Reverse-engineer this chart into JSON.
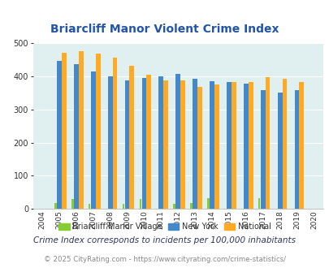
{
  "title": "Briarcliff Manor Violent Crime Index",
  "years": [
    2004,
    2005,
    2006,
    2007,
    2008,
    2009,
    2010,
    2011,
    2012,
    2013,
    2014,
    2015,
    2016,
    2017,
    2018,
    2019,
    2020
  ],
  "briarcliff": [
    0,
    17,
    30,
    15,
    0,
    15,
    30,
    0,
    15,
    17,
    32,
    0,
    0,
    32,
    0,
    0,
    0
  ],
  "new_york": [
    0,
    445,
    435,
    413,
    400,
    388,
    394,
    400,
    406,
    393,
    384,
    382,
    378,
    357,
    350,
    358,
    0
  ],
  "national": [
    0,
    470,
    474,
    468,
    455,
    432,
    405,
    388,
    387,
    368,
    376,
    381,
    381,
    397,
    393,
    381,
    0
  ],
  "briarcliff_color": "#88cc33",
  "new_york_color": "#4488cc",
  "national_color": "#ffaa22",
  "plot_bg": "#e0eff0",
  "ylim": [
    0,
    500
  ],
  "yticks": [
    0,
    100,
    200,
    300,
    400,
    500
  ],
  "legend_labels": [
    "Briarcliff Manor Village",
    "New York",
    "National"
  ],
  "footnote1": "Crime Index corresponds to incidents per 100,000 inhabitants",
  "footnote2": "© 2025 CityRating.com - https://www.cityrating.com/crime-statistics/",
  "title_color": "#2255aa",
  "footnote1_color": "#333366",
  "footnote2_color": "#888888"
}
